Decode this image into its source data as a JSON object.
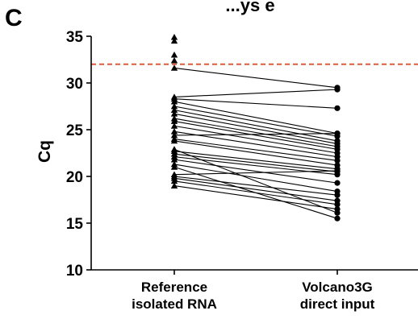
{
  "panel_label": "C",
  "chart_data": {
    "type": "line",
    "title_fragment": "...ys e",
    "ylabel": "Cq",
    "ylim": [
      10,
      35
    ],
    "yticks": [
      "35",
      "30",
      "25",
      "20",
      "15",
      "10"
    ],
    "categories": [
      [
        "Reference",
        "isolated RNA"
      ],
      [
        "Volcano3G",
        "direct input"
      ]
    ],
    "reference_line": {
      "y": 32,
      "color": "#e05a3a",
      "style": "dashed"
    },
    "marker_colors": {
      "line": "#000000",
      "points": "#000000"
    },
    "markers": [
      "triangle",
      "circle"
    ],
    "unpaired_reference_values": [
      34.5,
      34.9,
      33.0,
      32.4
    ],
    "pairs": [
      [
        31.6,
        29.5
      ],
      [
        28.5,
        29.3
      ],
      [
        28.3,
        27.3
      ],
      [
        28.0,
        24.6
      ],
      [
        27.5,
        24.3
      ],
      [
        27.1,
        23.8
      ],
      [
        26.7,
        23.5
      ],
      [
        26.2,
        23.2
      ],
      [
        25.9,
        22.9
      ],
      [
        25.4,
        22.5
      ],
      [
        24.8,
        22.1
      ],
      [
        24.4,
        24.6
      ],
      [
        24.0,
        21.7
      ],
      [
        23.8,
        21.2
      ],
      [
        22.7,
        20.8
      ],
      [
        22.4,
        20.5
      ],
      [
        22.1,
        20.2
      ],
      [
        21.8,
        19.3
      ],
      [
        21.3,
        18.4
      ],
      [
        20.2,
        20.6
      ],
      [
        20.0,
        18.0
      ],
      [
        19.8,
        17.4
      ],
      [
        19.5,
        17.0
      ],
      [
        19.0,
        16.5
      ],
      [
        22.9,
        16.1
      ],
      [
        21.0,
        15.5
      ]
    ]
  }
}
